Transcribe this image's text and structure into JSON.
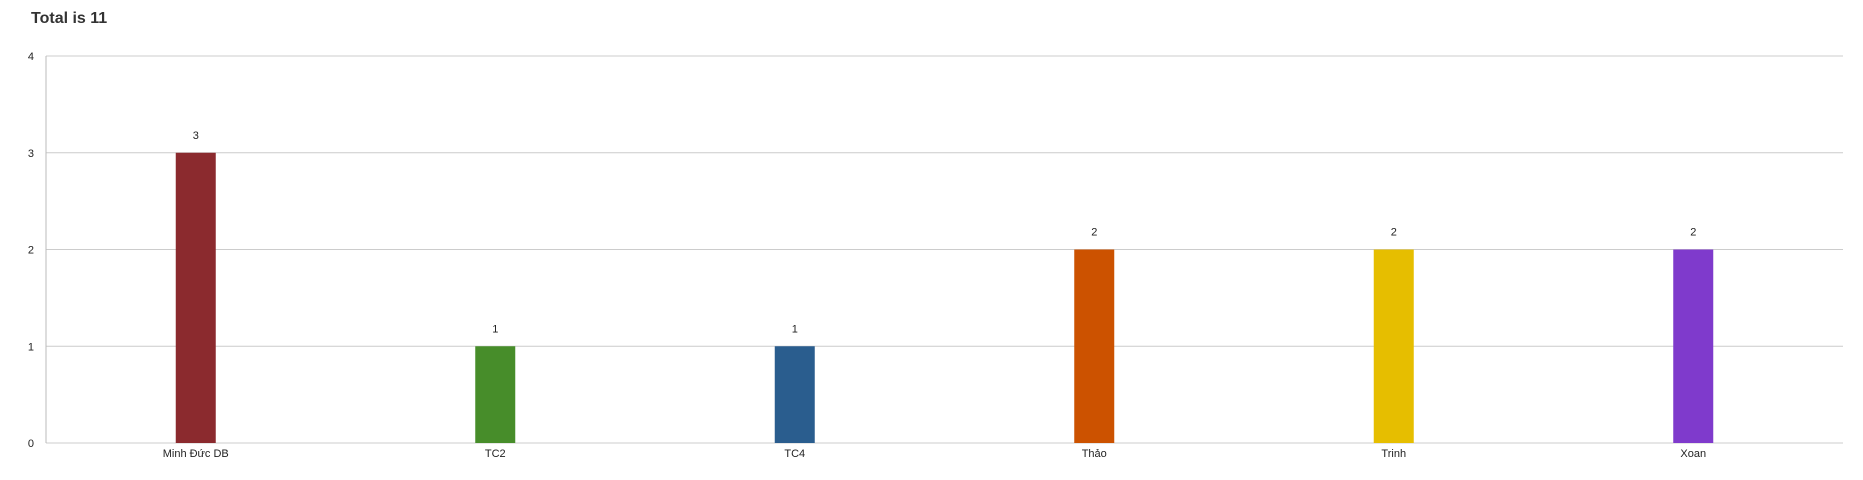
{
  "chart_data": {
    "type": "bar",
    "title": "Total is 11",
    "categories": [
      "Minh Đức DB",
      "TC2",
      "TC4",
      "Thảo",
      "Trinh",
      "Xoan"
    ],
    "values": [
      3,
      1,
      1,
      2,
      2,
      2
    ],
    "colors": [
      "#8B2A2E",
      "#478D2A",
      "#2A5D8E",
      "#CC5200",
      "#E6BE00",
      "#7F3ACC"
    ],
    "ylim": [
      0,
      4
    ],
    "yticks": [
      0,
      1,
      2,
      3,
      4
    ],
    "xlabel": "",
    "ylabel": "",
    "grid": true,
    "data_labels": true
  }
}
